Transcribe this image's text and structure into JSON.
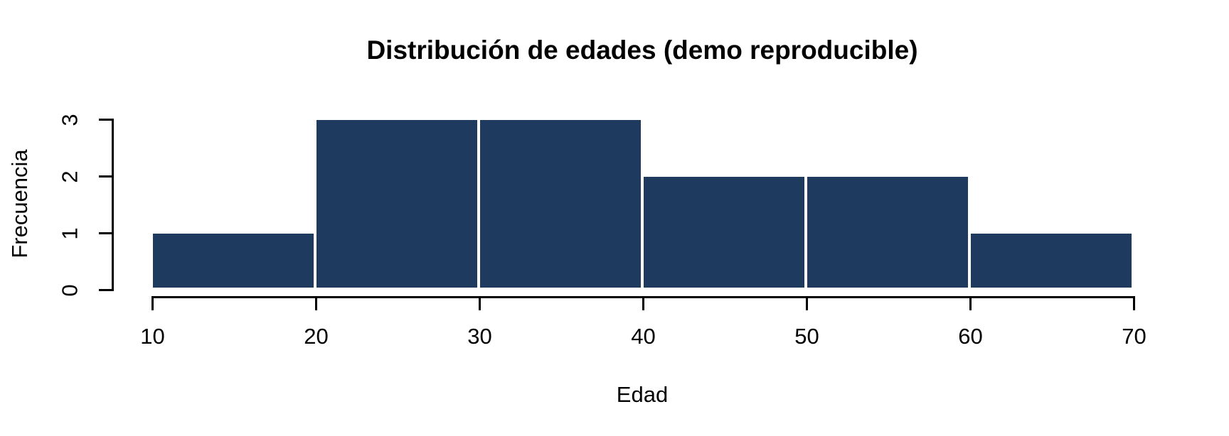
{
  "chart_data": {
    "type": "bar",
    "subtype": "histogram",
    "title": "Distribución de edades (demo reproducible)",
    "xlabel": "Edad",
    "ylabel": "Frecuencia",
    "bin_edges": [
      10,
      20,
      30,
      40,
      50,
      60,
      70
    ],
    "values": [
      1,
      3,
      3,
      2,
      2,
      1
    ],
    "x_ticks": [
      "10",
      "20",
      "30",
      "40",
      "50",
      "60",
      "70"
    ],
    "y_ticks": [
      "0",
      "1",
      "2",
      "3"
    ],
    "xlim": [
      10,
      70
    ],
    "ylim": [
      0,
      3
    ],
    "grid": false,
    "legend": false,
    "colors": {
      "bar_fill": "#1e3a5e",
      "bar_border": "#ffffff",
      "axis": "#000000",
      "text": "#000000",
      "background": "#ffffff"
    }
  }
}
